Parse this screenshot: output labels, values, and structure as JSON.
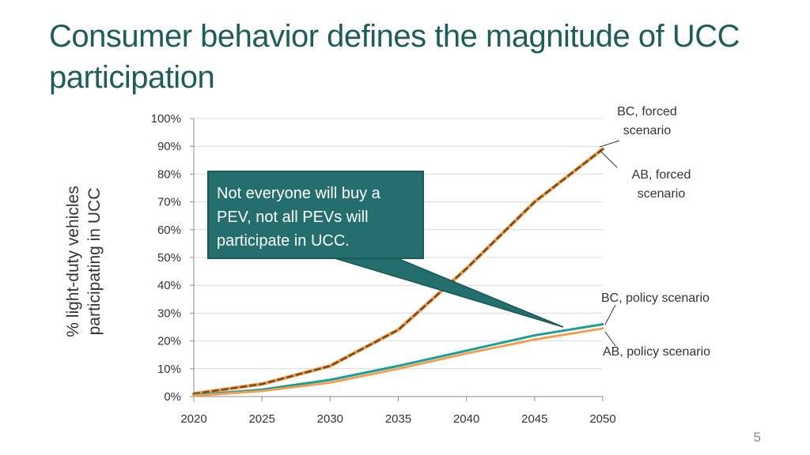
{
  "slide": {
    "title": "Consumer behavior defines the magnitude of UCC participation",
    "page_number": "5",
    "callout_text": "Not everyone will buy a PEV, not all PEVs will participate in UCC."
  },
  "chart_data": {
    "type": "line",
    "title": "",
    "xlabel": "",
    "ylabel_lines": [
      "% light-duty vehicles",
      "participating in UCC"
    ],
    "x": [
      2020,
      2025,
      2030,
      2035,
      2040,
      2045,
      2050
    ],
    "x_tick_labels": [
      "2020",
      "2025",
      "2030",
      "2035",
      "2040",
      "2045",
      "2050"
    ],
    "y_tick_labels": [
      "0%",
      "10%",
      "20%",
      "30%",
      "40%",
      "50%",
      "60%",
      "70%",
      "80%",
      "90%",
      "100%"
    ],
    "ylim": [
      0,
      100
    ],
    "grid": true,
    "series": [
      {
        "name": "AB, forced scenario",
        "values": [
          1,
          4.5,
          11,
          24,
          46,
          70,
          89
        ],
        "color": "#f0a050",
        "style": "solid-thick"
      },
      {
        "name": "BC, forced scenario",
        "values": [
          1,
          4.5,
          11,
          24,
          46,
          70,
          89
        ],
        "color": "#7a4a1e",
        "style": "dashed"
      },
      {
        "name": "BC, policy scenario",
        "values": [
          0.5,
          2.5,
          6,
          11,
          16.5,
          22,
          26
        ],
        "color": "#1a9e9a",
        "style": "solid"
      },
      {
        "name": "AB, policy scenario",
        "values": [
          0.3,
          2,
          5,
          10,
          15.5,
          20.5,
          24.5
        ],
        "color": "#f0a050",
        "style": "solid"
      }
    ],
    "annotations": {
      "bc_forced": [
        "BC, forced",
        "scenario"
      ],
      "ab_forced": [
        "AB, forced",
        "scenario"
      ],
      "bc_policy": "BC, policy scenario",
      "ab_policy": "AB, policy scenario"
    }
  }
}
